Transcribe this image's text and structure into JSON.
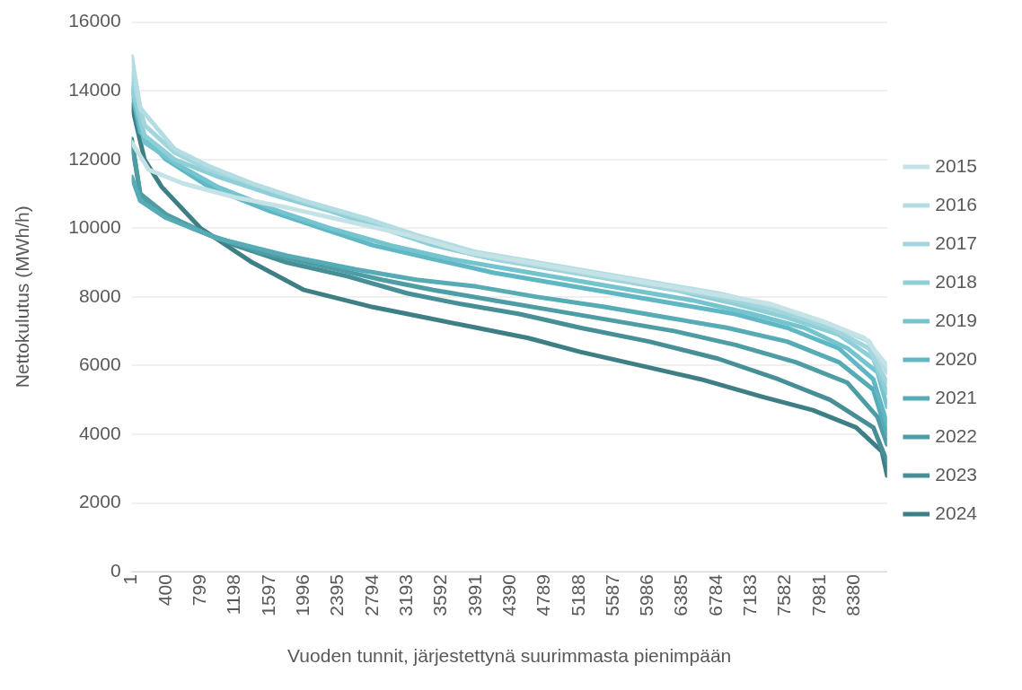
{
  "chart_data": {
    "type": "line",
    "xlabel": "Vuoden tunnit, järjestettynä suurimmasta pienimpään",
    "ylabel": "Nettokulutus (MWh/h)",
    "xlim": [
      1,
      8760
    ],
    "xticks": [
      1,
      400,
      799,
      1198,
      1597,
      1996,
      2395,
      2794,
      3193,
      3592,
      3991,
      4390,
      4789,
      5188,
      5587,
      5986,
      6385,
      6784,
      7183,
      7582,
      7981,
      8380
    ],
    "ylim": [
      0,
      16000
    ],
    "yticks": [
      0,
      2000,
      4000,
      6000,
      8000,
      10000,
      12000,
      14000,
      16000
    ],
    "grid": "y",
    "legend": "right",
    "marker": "none",
    "line_style": "solid",
    "series": [
      {
        "name": "2015",
        "color": "#c5e3e7",
        "x": [
          1,
          200,
          600,
          1200,
          1800,
          2500,
          3200,
          3900,
          4600,
          5300,
          6000,
          6700,
          7400,
          8000,
          8500,
          8760
        ],
        "values": [
          12500,
          11700,
          11300,
          10900,
          10600,
          10200,
          9800,
          9300,
          9000,
          8700,
          8400,
          8100,
          7800,
          7300,
          6800,
          6000
        ]
      },
      {
        "name": "2016",
        "color": "#b3dde2",
        "x": [
          1,
          100,
          500,
          900,
          1400,
          2000,
          2700,
          3300,
          4000,
          4700,
          5400,
          6100,
          6800,
          7500,
          8100,
          8550,
          8760
        ],
        "values": [
          15000,
          13500,
          12300,
          11800,
          11300,
          10800,
          10300,
          9800,
          9300,
          9000,
          8700,
          8400,
          8100,
          7700,
          7200,
          6700,
          5800
        ]
      },
      {
        "name": "2017",
        "color": "#a2d5dc",
        "x": [
          1,
          150,
          500,
          900,
          1500,
          2100,
          2800,
          3400,
          4000,
          4700,
          5400,
          6100,
          6800,
          7500,
          8100,
          8550,
          8760
        ],
        "values": [
          14500,
          13000,
          12200,
          11700,
          11200,
          10700,
          10200,
          9700,
          9200,
          8900,
          8600,
          8300,
          8000,
          7600,
          7100,
          6500,
          5500
        ]
      },
      {
        "name": "2018",
        "color": "#8ecfd7",
        "x": [
          1,
          150,
          500,
          1000,
          1600,
          2300,
          2900,
          3500,
          4200,
          4900,
          5600,
          6300,
          7000,
          7600,
          8200,
          8600,
          8760
        ],
        "values": [
          14100,
          12700,
          12000,
          11500,
          11000,
          10500,
          10000,
          9500,
          9100,
          8800,
          8500,
          8200,
          7800,
          7400,
          6900,
          6200,
          5200
        ]
      },
      {
        "name": "2019",
        "color": "#74c4cf",
        "x": [
          1,
          150,
          500,
          1000,
          1700,
          2300,
          3000,
          3700,
          4400,
          5100,
          5800,
          6500,
          7200,
          7800,
          8300,
          8650,
          8760
        ],
        "values": [
          14200,
          12500,
          11900,
          11200,
          10500,
          10000,
          9500,
          9100,
          8800,
          8500,
          8200,
          7900,
          7500,
          7100,
          6500,
          5800,
          4800
        ]
      },
      {
        "name": "2020",
        "color": "#5fb7c3",
        "x": [
          1,
          100,
          400,
          900,
          1600,
          2200,
          2800,
          3500,
          4200,
          4900,
          5600,
          6300,
          7000,
          7600,
          8200,
          8600,
          8760
        ],
        "values": [
          14000,
          12800,
          12000,
          11200,
          10500,
          10000,
          9500,
          9100,
          8700,
          8400,
          8100,
          7800,
          7500,
          7100,
          6500,
          5600,
          4300
        ]
      },
      {
        "name": "2021",
        "color": "#56abb5",
        "x": [
          1,
          100,
          400,
          1000,
          1800,
          2600,
          3300,
          4000,
          4700,
          5500,
          6200,
          6900,
          7600,
          8200,
          8600,
          8760
        ],
        "values": [
          11500,
          10800,
          10300,
          9700,
          9200,
          8800,
          8500,
          8300,
          8000,
          7700,
          7400,
          7100,
          6700,
          6100,
          5300,
          4000
        ]
      },
      {
        "name": "2022",
        "color": "#4e9da5",
        "x": [
          1,
          100,
          400,
          900,
          1500,
          2200,
          2900,
          3500,
          4200,
          4900,
          5600,
          6300,
          7000,
          7700,
          8300,
          8650,
          8760
        ],
        "values": [
          12500,
          11000,
          10400,
          9800,
          9300,
          8900,
          8500,
          8200,
          7900,
          7600,
          7300,
          7000,
          6600,
          6100,
          5500,
          4500,
          3700
        ]
      },
      {
        "name": "2023",
        "color": "#478f96",
        "x": [
          1,
          100,
          300,
          700,
          1200,
          1800,
          2500,
          3200,
          3800,
          4500,
          5200,
          6000,
          6800,
          7500,
          8100,
          8600,
          8760
        ],
        "values": [
          12600,
          11000,
          10500,
          10000,
          9500,
          9000,
          8600,
          8100,
          7800,
          7500,
          7100,
          6700,
          6200,
          5600,
          5000,
          4200,
          3200
        ]
      },
      {
        "name": "2024",
        "color": "#3e7f86",
        "x": [
          1,
          150,
          350,
          799,
          1400,
          2000,
          2800,
          3400,
          4000,
          4600,
          5200,
          5900,
          6600,
          7300,
          7900,
          8400,
          8700,
          8760
        ],
        "values": [
          13600,
          12000,
          11200,
          10000,
          9000,
          8200,
          7700,
          7400,
          7100,
          6800,
          6400,
          6000,
          5600,
          5100,
          4700,
          4200,
          3500,
          2800
        ]
      }
    ]
  }
}
